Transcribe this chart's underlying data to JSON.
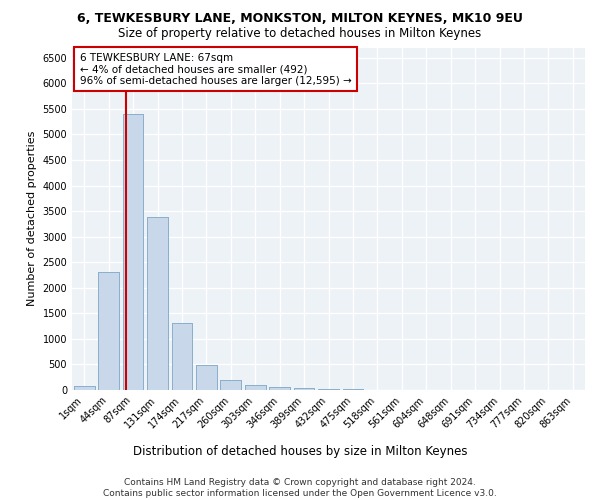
{
  "title1": "6, TEWKESBURY LANE, MONKSTON, MILTON KEYNES, MK10 9EU",
  "title2": "Size of property relative to detached houses in Milton Keynes",
  "xlabel": "Distribution of detached houses by size in Milton Keynes",
  "ylabel": "Number of detached properties",
  "categories": [
    "1sqm",
    "44sqm",
    "87sqm",
    "131sqm",
    "174sqm",
    "217sqm",
    "260sqm",
    "303sqm",
    "346sqm",
    "389sqm",
    "432sqm",
    "475sqm",
    "518sqm",
    "561sqm",
    "604sqm",
    "648sqm",
    "691sqm",
    "734sqm",
    "777sqm",
    "820sqm",
    "863sqm"
  ],
  "values": [
    75,
    2300,
    5400,
    3380,
    1320,
    490,
    195,
    90,
    55,
    35,
    25,
    20,
    0,
    0,
    0,
    0,
    0,
    0,
    0,
    0,
    0
  ],
  "bar_color": "#c8d8ea",
  "bar_edge_color": "#8ab0cc",
  "ref_line_color": "#cc0000",
  "ref_line_x": 1.72,
  "annotation_text": "6 TEWKESBURY LANE: 67sqm\n← 4% of detached houses are smaller (492)\n96% of semi-detached houses are larger (12,595) →",
  "annotation_box_color": "white",
  "annotation_box_edge_color": "#cc0000",
  "ylim": [
    0,
    6700
  ],
  "yticks": [
    0,
    500,
    1000,
    1500,
    2000,
    2500,
    3000,
    3500,
    4000,
    4500,
    5000,
    5500,
    6000,
    6500
  ],
  "background_color": "#edf2f7",
  "grid_color": "white",
  "footnote": "Contains HM Land Registry data © Crown copyright and database right 2024.\nContains public sector information licensed under the Open Government Licence v3.0.",
  "title1_fontsize": 9,
  "title2_fontsize": 8.5,
  "xlabel_fontsize": 8.5,
  "ylabel_fontsize": 8,
  "tick_fontsize": 7,
  "annot_fontsize": 7.5,
  "footnote_fontsize": 6.5
}
